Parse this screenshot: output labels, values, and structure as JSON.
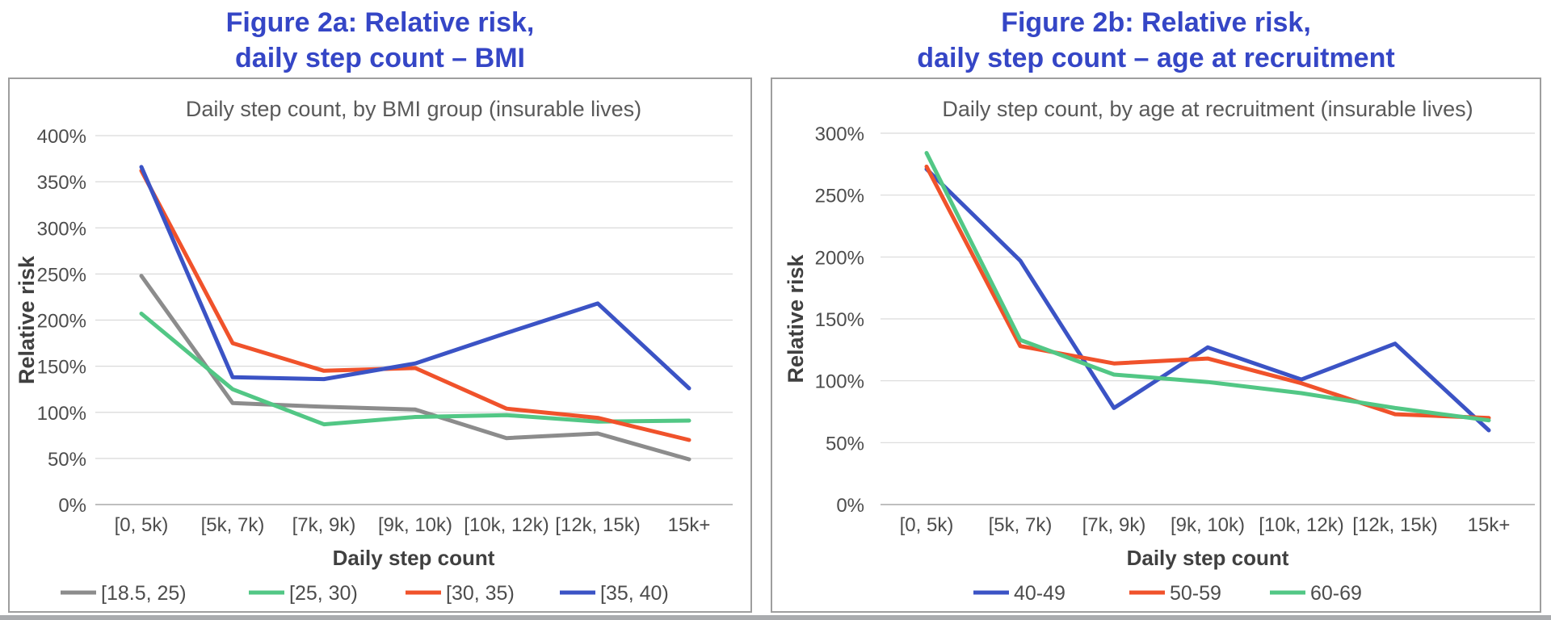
{
  "colors": {
    "figure_title": "#3546C6",
    "tick_text": "#4D4D4D",
    "chart_title_text": "#595959",
    "axis_title_text": "#404040",
    "legend_text": "#4D4D4D",
    "gridline": "#D9D9D9",
    "zero_axis_line": "#BFBFBF",
    "panel_border": "#9E9E9E",
    "series_gray": "#8C8C8C",
    "series_green": "#52C785",
    "series_orange": "#F0522B",
    "series_blue": "#3B53C5"
  },
  "chart_data": [
    {
      "type": "line",
      "figure_title": [
        "Figure 2a: Relative risk,",
        "daily step count – BMI"
      ],
      "title": "Daily step count, by BMI group (insurable lives)",
      "xlabel": "Daily step count",
      "ylabel": "Relative risk",
      "categories": [
        "[0, 5k)",
        "[5k, 7k)",
        "[7k, 9k)",
        "[9k, 10k)",
        "[10k, 12k)",
        "[12k, 15k)",
        "15k+"
      ],
      "series": [
        {
          "name": "[18.5, 25)",
          "color": "#8C8C8C",
          "values": [
            248,
            110,
            106,
            103,
            72,
            77,
            49
          ]
        },
        {
          "name": "[25, 30)",
          "color": "#52C785",
          "values": [
            207,
            125,
            87,
            95,
            97,
            90,
            91
          ]
        },
        {
          "name": "[30, 35)",
          "color": "#F0522B",
          "values": [
            362,
            175,
            145,
            148,
            104,
            94,
            70
          ]
        },
        {
          "name": "[35, 40)",
          "color": "#3B53C5",
          "values": [
            366,
            138,
            136,
            153,
            186,
            218,
            126
          ]
        }
      ],
      "ylim": [
        0,
        400
      ],
      "ytick_step": 50,
      "ytick_suffix": "%",
      "grid": true,
      "legend_position": "bottom"
    },
    {
      "type": "line",
      "figure_title": [
        "Figure 2b: Relative risk,",
        "daily step count – age at recruitment"
      ],
      "title": "Daily step count, by age at recruitment (insurable lives)",
      "xlabel": "Daily step count",
      "ylabel": "Relative risk",
      "categories": [
        "[0, 5k)",
        "[5k, 7k)",
        "[7k, 9k)",
        "[9k, 10k)",
        "[10k, 12k)",
        "[12k, 15k)",
        "15k+"
      ],
      "series": [
        {
          "name": "40-49",
          "color": "#3B53C5",
          "values": [
            271,
            197,
            78,
            127,
            101,
            130,
            60
          ]
        },
        {
          "name": "50-59",
          "color": "#F0522B",
          "values": [
            273,
            128,
            114,
            118,
            98,
            73,
            70
          ]
        },
        {
          "name": "60-69",
          "color": "#52C785",
          "values": [
            284,
            133,
            105,
            99,
            90,
            78,
            68
          ]
        }
      ],
      "ylim": [
        0,
        300
      ],
      "ytick_step": 50,
      "ytick_suffix": "%",
      "grid": true,
      "legend_position": "bottom"
    }
  ]
}
